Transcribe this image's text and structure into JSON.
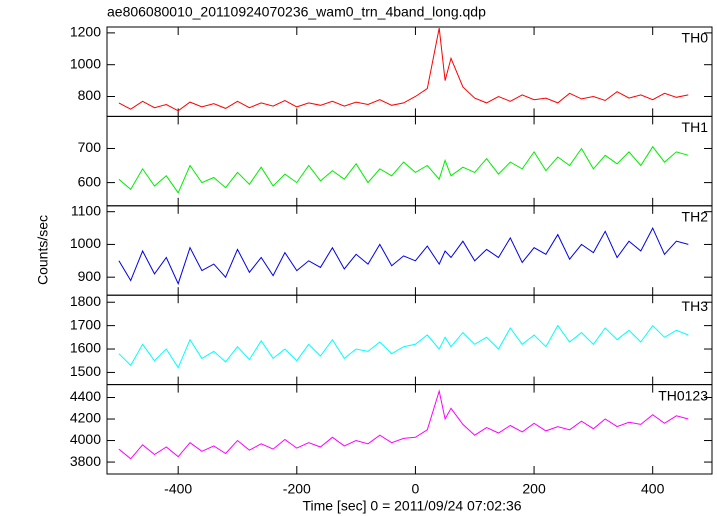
{
  "chart_data": [
    {
      "type": "line",
      "title": "ae806080010_20110924070236_wam0_trn_4band_long.qdp",
      "ylabel": "Counts/sec",
      "x": [
        -500,
        -480,
        -460,
        -440,
        -420,
        -400,
        -380,
        -360,
        -340,
        -320,
        -300,
        -280,
        -260,
        -240,
        -220,
        -200,
        -180,
        -160,
        -140,
        -120,
        -100,
        -80,
        -60,
        -40,
        -20,
        0,
        20,
        40,
        50,
        60,
        80,
        100,
        120,
        140,
        160,
        180,
        200,
        220,
        240,
        260,
        280,
        300,
        320,
        340,
        360,
        380,
        400,
        420,
        440,
        460
      ],
      "xlim": [
        -520,
        500
      ],
      "xticks": [
        -400,
        -200,
        0,
        200,
        400
      ],
      "ylim": [
        675,
        1237
      ],
      "yticks": [
        800,
        1000,
        1200
      ],
      "series": [
        {
          "name": "TH0",
          "color": "#ff0000",
          "values": [
            760,
            720,
            770,
            730,
            750,
            710,
            765,
            735,
            755,
            725,
            770,
            730,
            760,
            740,
            775,
            735,
            760,
            745,
            770,
            740,
            765,
            750,
            780,
            745,
            760,
            800,
            850,
            1230,
            900,
            1040,
            860,
            790,
            760,
            800,
            770,
            810,
            780,
            790,
            760,
            820,
            785,
            800,
            775,
            830,
            790,
            810,
            780,
            820,
            795,
            810
          ]
        }
      ]
    },
    {
      "type": "line",
      "x": [
        -500,
        -480,
        -460,
        -440,
        -420,
        -400,
        -380,
        -360,
        -340,
        -320,
        -300,
        -280,
        -260,
        -240,
        -220,
        -200,
        -180,
        -160,
        -140,
        -120,
        -100,
        -80,
        -60,
        -40,
        -20,
        0,
        20,
        40,
        50,
        60,
        80,
        100,
        120,
        140,
        160,
        180,
        200,
        220,
        240,
        260,
        280,
        300,
        320,
        340,
        360,
        380,
        400,
        420,
        440,
        460
      ],
      "xlim": [
        -520,
        500
      ],
      "xticks": [
        -400,
        -200,
        0,
        200,
        400
      ],
      "ylim": [
        532,
        794
      ],
      "yticks": [
        600,
        700
      ],
      "series": [
        {
          "name": "TH1",
          "color": "#00ee00",
          "values": [
            610,
            580,
            640,
            590,
            620,
            570,
            650,
            600,
            615,
            585,
            630,
            595,
            645,
            590,
            625,
            600,
            650,
            605,
            635,
            610,
            655,
            600,
            640,
            620,
            660,
            630,
            650,
            610,
            665,
            620,
            645,
            630,
            670,
            625,
            660,
            640,
            690,
            635,
            675,
            650,
            700,
            640,
            680,
            655,
            690,
            650,
            705,
            660,
            690,
            680
          ]
        }
      ]
    },
    {
      "type": "line",
      "x": [
        -500,
        -480,
        -460,
        -440,
        -420,
        -400,
        -380,
        -360,
        -340,
        -320,
        -300,
        -280,
        -260,
        -240,
        -220,
        -200,
        -180,
        -160,
        -140,
        -120,
        -100,
        -80,
        -60,
        -40,
        -20,
        0,
        20,
        40,
        50,
        60,
        80,
        100,
        120,
        140,
        160,
        180,
        200,
        220,
        240,
        260,
        280,
        300,
        320,
        340,
        360,
        380,
        400,
        420,
        440,
        460
      ],
      "xlim": [
        -520,
        500
      ],
      "xticks": [
        -400,
        -200,
        0,
        200,
        400
      ],
      "ylim": [
        845,
        1118
      ],
      "yticks": [
        900,
        1000,
        1100
      ],
      "series": [
        {
          "name": "TH2",
          "color": "#0000ee",
          "values": [
            950,
            890,
            980,
            910,
            960,
            880,
            990,
            920,
            940,
            900,
            985,
            915,
            960,
            905,
            975,
            920,
            950,
            930,
            990,
            925,
            970,
            940,
            1000,
            935,
            965,
            950,
            995,
            940,
            980,
            960,
            1010,
            950,
            985,
            960,
            1020,
            945,
            990,
            970,
            1030,
            955,
            1000,
            975,
            1040,
            960,
            1010,
            980,
            1050,
            970,
            1010,
            1000
          ]
        }
      ]
    },
    {
      "type": "line",
      "x": [
        -500,
        -480,
        -460,
        -440,
        -420,
        -400,
        -380,
        -360,
        -340,
        -320,
        -300,
        -280,
        -260,
        -240,
        -220,
        -200,
        -180,
        -160,
        -140,
        -120,
        -100,
        -80,
        -60,
        -40,
        -20,
        0,
        20,
        40,
        50,
        60,
        80,
        100,
        120,
        140,
        160,
        180,
        200,
        220,
        240,
        260,
        280,
        300,
        320,
        340,
        360,
        380,
        400,
        420,
        440,
        460
      ],
      "xlim": [
        -520,
        500
      ],
      "xticks": [
        -400,
        -200,
        0,
        200,
        400
      ],
      "ylim": [
        1448,
        1830
      ],
      "yticks": [
        1500,
        1600,
        1700,
        1800
      ],
      "series": [
        {
          "name": "TH3",
          "color": "#00ffff",
          "values": [
            1580,
            1530,
            1620,
            1550,
            1600,
            1520,
            1640,
            1560,
            1590,
            1545,
            1610,
            1555,
            1635,
            1560,
            1600,
            1550,
            1620,
            1570,
            1640,
            1560,
            1600,
            1590,
            1630,
            1580,
            1610,
            1620,
            1660,
            1600,
            1650,
            1610,
            1670,
            1620,
            1650,
            1600,
            1690,
            1620,
            1660,
            1610,
            1700,
            1630,
            1670,
            1620,
            1690,
            1640,
            1680,
            1630,
            1700,
            1650,
            1680,
            1660
          ]
        }
      ]
    },
    {
      "type": "line",
      "xlabel": "Time [sec] 0 = 2011/09/24 07:02:36",
      "x": [
        -500,
        -480,
        -460,
        -440,
        -420,
        -400,
        -380,
        -360,
        -340,
        -320,
        -300,
        -280,
        -260,
        -240,
        -220,
        -200,
        -180,
        -160,
        -140,
        -120,
        -100,
        -80,
        -60,
        -40,
        -20,
        0,
        20,
        40,
        50,
        60,
        80,
        100,
        120,
        140,
        160,
        180,
        200,
        220,
        240,
        260,
        280,
        300,
        320,
        340,
        360,
        380,
        400,
        420,
        440,
        460
      ],
      "xlim": [
        -520,
        500
      ],
      "xticks": [
        -400,
        -200,
        0,
        200,
        400
      ],
      "ylim": [
        3689,
        4520
      ],
      "yticks": [
        3800,
        4000,
        4200,
        4400
      ],
      "series": [
        {
          "name": "TH0123",
          "color": "#ff00ff",
          "values": [
            3920,
            3830,
            3960,
            3870,
            3940,
            3850,
            3980,
            3900,
            3950,
            3880,
            4000,
            3910,
            3970,
            3920,
            4010,
            3930,
            3980,
            3940,
            4030,
            3950,
            4000,
            3970,
            4050,
            3980,
            4020,
            4030,
            4100,
            4460,
            4200,
            4300,
            4150,
            4050,
            4120,
            4070,
            4140,
            4080,
            4160,
            4090,
            4130,
            4100,
            4180,
            4110,
            4200,
            4130,
            4170,
            4150,
            4240,
            4160,
            4230,
            4200
          ]
        }
      ]
    }
  ]
}
